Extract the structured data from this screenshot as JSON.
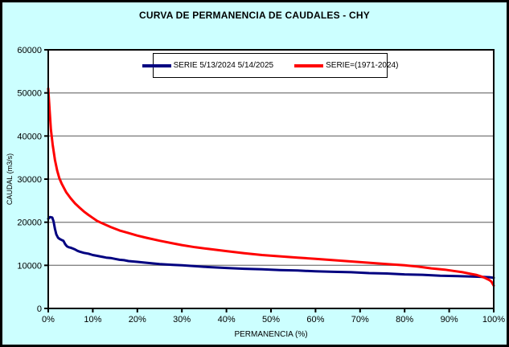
{
  "window": {
    "title": "CURVA DE PERMANENCIA DE CAUDALES - CHY"
  },
  "colors": {
    "page_background": "#ccffff",
    "plot_background": "#ffffff",
    "gridline": "#848484",
    "axis": "#000000",
    "series1": "#000080",
    "series2": "#ff0000"
  },
  "chart_data": {
    "type": "line",
    "title": "CURVA DE PERMANENCIA DE CAUDALES - CHY",
    "xlabel": "PERMANENCIA (%)",
    "ylabel": "CAUDAL (m3/s)",
    "xlim": [
      0,
      100
    ],
    "ylim": [
      0,
      60000
    ],
    "x_ticks": [
      0,
      10,
      20,
      30,
      40,
      50,
      60,
      70,
      80,
      90,
      100
    ],
    "x_tick_labels": [
      "0%",
      "10%",
      "20%",
      "30%",
      "40%",
      "50%",
      "60%",
      "70%",
      "80%",
      "90%",
      "100%"
    ],
    "y_ticks": [
      0,
      10000,
      20000,
      30000,
      40000,
      50000,
      60000
    ],
    "y_tick_labels": [
      "0",
      "10000",
      "20000",
      "30000",
      "40000",
      "50000",
      "60000"
    ],
    "grid": "horizontal-major",
    "legend_position": "top-center-boxed",
    "series": [
      {
        "name": "SERIE 5/13/2024 5/14/2025",
        "color": "#000080",
        "points": [
          [
            0,
            20800
          ],
          [
            0.4,
            21200
          ],
          [
            0.9,
            21100
          ],
          [
            1.2,
            20200
          ],
          [
            1.5,
            18500
          ],
          [
            1.8,
            17200
          ],
          [
            2.2,
            16400
          ],
          [
            2.6,
            16100
          ],
          [
            3,
            15900
          ],
          [
            3.4,
            15700
          ],
          [
            3.8,
            14900
          ],
          [
            4.2,
            14400
          ],
          [
            4.6,
            14200
          ],
          [
            5,
            14100
          ],
          [
            5.5,
            13900
          ],
          [
            6,
            13700
          ],
          [
            6.5,
            13400
          ],
          [
            7,
            13200
          ],
          [
            8,
            12900
          ],
          [
            9,
            12700
          ],
          [
            10,
            12400
          ],
          [
            11,
            12200
          ],
          [
            12,
            12000
          ],
          [
            13,
            11800
          ],
          [
            14,
            11700
          ],
          [
            15,
            11500
          ],
          [
            16,
            11300
          ],
          [
            17,
            11200
          ],
          [
            18,
            11000
          ],
          [
            20,
            10800
          ],
          [
            22,
            10600
          ],
          [
            25,
            10300
          ],
          [
            28,
            10100
          ],
          [
            30,
            10000
          ],
          [
            33,
            9800
          ],
          [
            36,
            9600
          ],
          [
            40,
            9400
          ],
          [
            44,
            9200
          ],
          [
            48,
            9100
          ],
          [
            52,
            8900
          ],
          [
            56,
            8800
          ],
          [
            60,
            8600
          ],
          [
            64,
            8500
          ],
          [
            68,
            8400
          ],
          [
            72,
            8200
          ],
          [
            76,
            8100
          ],
          [
            80,
            7900
          ],
          [
            84,
            7800
          ],
          [
            88,
            7600
          ],
          [
            92,
            7500
          ],
          [
            95,
            7400
          ],
          [
            97,
            7350
          ],
          [
            99,
            7250
          ],
          [
            100,
            7100
          ]
        ]
      },
      {
        "name": "SERIE=(1971-2024)",
        "color": "#ff0000",
        "points": [
          [
            0,
            51000
          ],
          [
            0.3,
            46000
          ],
          [
            0.6,
            41500
          ],
          [
            1,
            38000
          ],
          [
            1.5,
            34500
          ],
          [
            2,
            32000
          ],
          [
            2.5,
            30200
          ],
          [
            3,
            29000
          ],
          [
            4,
            27000
          ],
          [
            5,
            25600
          ],
          [
            6,
            24400
          ],
          [
            7,
            23400
          ],
          [
            8,
            22500
          ],
          [
            9,
            21700
          ],
          [
            10,
            21000
          ],
          [
            11,
            20300
          ],
          [
            12,
            19800
          ],
          [
            14,
            18900
          ],
          [
            16,
            18100
          ],
          [
            18,
            17500
          ],
          [
            20,
            16900
          ],
          [
            22,
            16400
          ],
          [
            25,
            15700
          ],
          [
            28,
            15100
          ],
          [
            30,
            14700
          ],
          [
            33,
            14200
          ],
          [
            36,
            13800
          ],
          [
            40,
            13300
          ],
          [
            44,
            12800
          ],
          [
            48,
            12400
          ],
          [
            52,
            12100
          ],
          [
            56,
            11800
          ],
          [
            60,
            11500
          ],
          [
            64,
            11200
          ],
          [
            68,
            10900
          ],
          [
            72,
            10600
          ],
          [
            76,
            10300
          ],
          [
            80,
            10000
          ],
          [
            83,
            9700
          ],
          [
            86,
            9300
          ],
          [
            89,
            9000
          ],
          [
            91,
            8700
          ],
          [
            93,
            8400
          ],
          [
            95,
            8000
          ],
          [
            96,
            7800
          ],
          [
            97,
            7500
          ],
          [
            98,
            7100
          ],
          [
            99,
            6600
          ],
          [
            99.5,
            6200
          ],
          [
            100,
            5300
          ]
        ]
      }
    ]
  }
}
